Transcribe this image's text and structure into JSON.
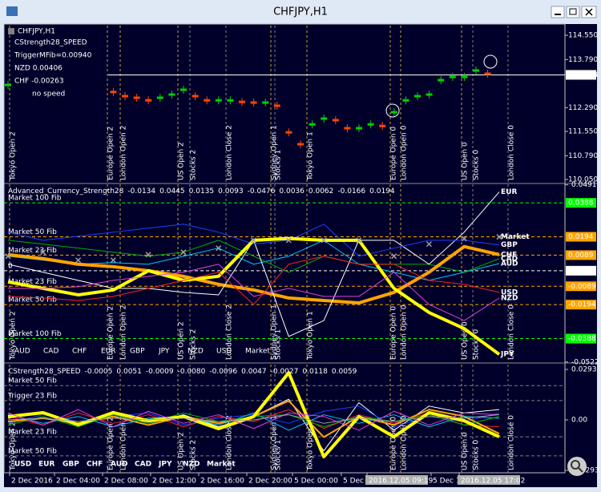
{
  "window": {
    "title": "CHFJPY,H1"
  },
  "sessions": [
    "Tokyo Open 2",
    "Europe Open 2",
    "London Open 2",
    "US Open 2",
    "Stocks 2",
    "London Close 2",
    "Sydney Open 1",
    "Stocks 1",
    "Tokyo Open 1",
    "Europe Open 0",
    "London Open 0",
    "US Open 0",
    "Stocks 0",
    "London Close 0"
  ],
  "time_axis": [
    "2 Dec 2016",
    "2 Dec 04:00",
    "2 Dec 08:00",
    "2 Dec 12:00",
    "2 Dec 16:00",
    "2 Dec 20:00",
    "5 Dec 00:00",
    "5 Dec 04:",
    "2016.12.05 09:19",
    "5 Dec 12:",
    "2016.12.05 17:02"
  ],
  "chart_data": [
    {
      "type": "tick",
      "title": "CHFJPY,H1",
      "annotations": [
        "CStrength28_SPEED",
        "TriggerMFib=0.00940",
        "NZD 0.00406",
        "CHF -0.00263",
        "no speed"
      ],
      "values": [
        113.0,
        null,
        null,
        null,
        null,
        null,
        null,
        null,
        null,
        112.78,
        112.65,
        112.6,
        112.52,
        112.6,
        112.7,
        112.85,
        112.65,
        112.52,
        112.52,
        112.52,
        112.47,
        112.45,
        112.45,
        112.35,
        111.52,
        111.15,
        111.77,
        111.95,
        111.9,
        111.65,
        111.65,
        111.77,
        111.72,
        112.15,
        112.52,
        112.65,
        112.7,
        113.15,
        113.25,
        113.25,
        113.45,
        113.35
      ],
      "up_color": "#00d000",
      "down_color": "#ff4500",
      "ylim": [
        109.95,
        114.85
      ],
      "yticks": [
        {
          "value": 114.55,
          "label": "114.550"
        },
        {
          "value": 113.79,
          "label": "113.790"
        },
        {
          "value": 112.29,
          "label": "112.290"
        },
        {
          "value": 111.55,
          "label": "111.550"
        },
        {
          "value": 110.79,
          "label": "110.790"
        },
        {
          "value": 110.05,
          "label": "110.050"
        }
      ],
      "current_price": 113.314
    },
    {
      "type": "line",
      "title": "Advanced_Currency_Strength28",
      "header_values": [
        -0.0134,
        0.0445,
        0.0135,
        0.0093,
        -0.0476,
        0.0036,
        0.0062,
        -0.0166,
        0.0194
      ],
      "ylim": [
        -0.0523,
        0.0494
      ],
      "yticks": [
        0.0491,
        -0.0522
      ],
      "levels": [
        {
          "value": 0.0388,
          "label": "0.0388",
          "name": "Market 100 Fib",
          "color": "#00ff00"
        },
        {
          "value": 0.0194,
          "label": "0.0194",
          "name": "Market 50 Fib",
          "color": "#ffa500"
        },
        {
          "value": 0.0089,
          "label": "0.0089",
          "name": "Market 23 Fib",
          "color": "#ffa500"
        },
        {
          "value": 0,
          "label": "0.0000",
          "name": "0",
          "color": "#ffffff"
        },
        {
          "value": -0.0089,
          "label": "-0.0089",
          "name": "Market 23 Fib",
          "color": "#ffa500"
        },
        {
          "value": -0.0194,
          "label": "-0.0194",
          "name": "Market 50 Fib",
          "color": "#ffa500"
        },
        {
          "value": -0.0388,
          "label": "-0.0388",
          "name": "Market 100 Fib",
          "color": "#00ff00"
        }
      ],
      "end_labels": true,
      "series": [
        {
          "name": "AUD",
          "color": "#00c8ff",
          "width": 1,
          "values": [
            0.0083,
            0.006,
            0.0037,
            0.0046,
            0.0037,
            0.0083,
            0.0129,
            0.0037,
            0.0083,
            0.0174,
            0.0037,
            -0.0009,
            -0.0055,
            -0.0009,
            0.0041
          ]
        },
        {
          "name": "CAD",
          "color": "#00b000",
          "width": 1,
          "values": [
            0.0174,
            0.0152,
            0.0129,
            0.0106,
            0.0083,
            0.0106,
            0.0174,
            0.0083,
            -0.0009,
            0.0083,
            0.0037,
            0.0037,
            0.0037,
            -0.0009,
            0.0069
          ]
        },
        {
          "name": "CHF",
          "color": "#ffa500",
          "width": 4,
          "values": [
            0.0092,
            0.0069,
            0.0037,
            0.0023,
            0,
            -0.0032,
            -0.0078,
            -0.011,
            -0.0156,
            -0.017,
            -0.0184,
            -0.0124,
            -0.0009,
            0.0138,
            0.0092
          ]
        },
        {
          "name": "EUR",
          "color": "#ffffff",
          "width": 1,
          "values": [
            0.0037,
            -0.0009,
            -0.0055,
            -0.0101,
            -0.0101,
            -0.0124,
            -0.0138,
            0.0174,
            -0.0376,
            -0.0285,
            0.0174,
            0.0174,
            0.0037,
            0.022,
            0.045
          ]
        },
        {
          "name": "GBP",
          "color": "#2040ff",
          "width": 1,
          "values": [
            0.022,
            0.0174,
            0.0197,
            0.022,
            0.0243,
            0.0266,
            0.022,
            0.0152,
            0.0174,
            0.0266,
            0.0083,
            0.0129,
            0.0174,
            0.0174,
            0.0147
          ]
        },
        {
          "name": "JPY",
          "color": "#ffff00",
          "width": 4,
          "values": [
            -0.0064,
            -0.0101,
            -0.0138,
            -0.011,
            0,
            -0.0055,
            -0.0032,
            0.0174,
            0.0184,
            0.0174,
            0.0174,
            -0.0101,
            -0.0239,
            -0.0331,
            -0.0478
          ]
        },
        {
          "name": "NZD",
          "color": "#e040e0",
          "width": 1,
          "values": [
            -0.0101,
            -0.0101,
            -0.0092,
            -0.0055,
            -0.0032,
            -0.0009,
            0.0037,
            -0.0147,
            -0.0101,
            -0.0147,
            -0.0147,
            -0.0009,
            -0.0193,
            -0.0285,
            -0.0156
          ]
        },
        {
          "name": "USD",
          "color": "#ff2020",
          "width": 1,
          "values": [
            -0.0147,
            -0.0156,
            -0.017,
            -0.0147,
            -0.0101,
            -0.0055,
            -0.0009,
            -0.0193,
            0.0037,
            0.0083,
            0.0037,
            0.0037,
            -0.0055,
            -0.0078,
            -0.0124
          ]
        },
        {
          "name": "Market",
          "color": "#a0a0a0",
          "width": 1,
          "marker": "x",
          "values": [
            0.0083,
            0.0106,
            0.006,
            0.006,
            0.0092,
            0.0106,
            0.0129,
            0.0174,
            0.0174,
            0.0174,
            0.0174,
            0.0083,
            0.0152,
            0.0184,
            0.0193
          ]
        }
      ]
    },
    {
      "type": "line",
      "title": "CStrength28_SPEED",
      "header_values": [
        -0.0005,
        0.0051,
        -0.0009,
        {
          "value": -0.008,
          "label": "-0.0080"
        },
        -0.0096,
        0.0047,
        -0.0027,
        0.0118,
        0.0059
      ],
      "ylim": [
        -0.0307,
        0.0321
      ],
      "yticks": [
        0.0293,
        {
          "value": 0,
          "label": "0.00"
        },
        -0.0293
      ],
      "levels": [
        {
          "value": 0.0199,
          "name": "Market 50 Fib",
          "color": "#808080"
        },
        {
          "value": 0.0112,
          "name": "Trigger 23 Fib",
          "color": "#808080"
        },
        {
          "value": -0.0098,
          "name": "Market 23 Fib",
          "color": "#808080"
        },
        {
          "value": -0.0209,
          "name": "Market 50 Fib",
          "color": "#808080"
        }
      ],
      "series": [
        {
          "name": "USD",
          "color": "#ff2020",
          "width": 1,
          "values": [
            0.002,
            -0.003,
            0.004,
            -0.002,
            0.003,
            -0.004,
            0.002,
            -0.001,
            0.006,
            -0.005,
            0.003,
            -0.002,
            0.004,
            -0.003,
            -0.004
          ]
        },
        {
          "name": "EUR",
          "color": "#ffffff",
          "width": 1,
          "values": [
            0.001,
            0.004,
            -0.003,
            0.005,
            -0.002,
            0.003,
            -0.004,
            0.002,
            0.012,
            -0.018,
            0.01,
            -0.006,
            0.008,
            0.004,
            0.006
          ]
        },
        {
          "name": "GBP",
          "color": "#2040ff",
          "width": 1,
          "values": [
            -0.002,
            0.003,
            -0.001,
            0.002,
            0.004,
            -0.003,
            0.001,
            0.003,
            -0.002,
            0.005,
            0.008,
            -0.004,
            0.002,
            -0.001,
            0.004
          ]
        },
        {
          "name": "CHF",
          "color": "#ffa500",
          "width": 2,
          "values": [
            -0.001,
            0.001,
            -0.002,
            0.002,
            -0.003,
            0.002,
            -0.002,
            0.002,
            0.011,
            -0.01,
            0.002,
            -0.003,
            0.006,
            0.002,
            -0.008
          ]
        },
        {
          "name": "AUD",
          "color": "#00c8ff",
          "width": 1,
          "values": [
            0.003,
            -0.002,
            0.002,
            -0.004,
            0.001,
            0.002,
            -0.003,
            0.004,
            -0.006,
            0.003,
            -0.002,
            0.003,
            -0.004,
            0.002,
            0.001
          ]
        },
        {
          "name": "CAD",
          "color": "#00b000",
          "width": 1,
          "values": [
            -0.003,
            0.002,
            -0.004,
            0.003,
            -0.002,
            0.004,
            -0.001,
            0.002,
            0.003,
            -0.004,
            0.002,
            -0.001,
            0.003,
            -0.003,
            0.002
          ]
        },
        {
          "name": "JPY",
          "color": "#ffff00",
          "width": 4,
          "values": [
            0.0019,
            0.0042,
            -0.0028,
            0.0042,
            -0.0005,
            0.0019,
            -0.0051,
            0.0019,
            0.0274,
            -0.0214,
            0.0019,
            -0.0098,
            0.0042,
            -0.0005,
            -0.0098
          ]
        },
        {
          "name": "NZD",
          "color": "#e040e0",
          "width": 1,
          "values": [
            0.004,
            -0.003,
            0.006,
            -0.004,
            0.005,
            -0.002,
            0.003,
            -0.005,
            0.004,
            0.002,
            -0.006,
            0.005,
            -0.003,
            0.004,
            0.003
          ]
        },
        {
          "name": "Market",
          "color": "#a0a0a0",
          "width": 1,
          "values": [
            0,
            0.001,
            -0.001,
            0.001,
            0,
            0.001,
            -0.001,
            0,
            0.003,
            -0.002,
            0.001,
            -0.001,
            0.002,
            0.001,
            0.003
          ]
        }
      ]
    }
  ]
}
